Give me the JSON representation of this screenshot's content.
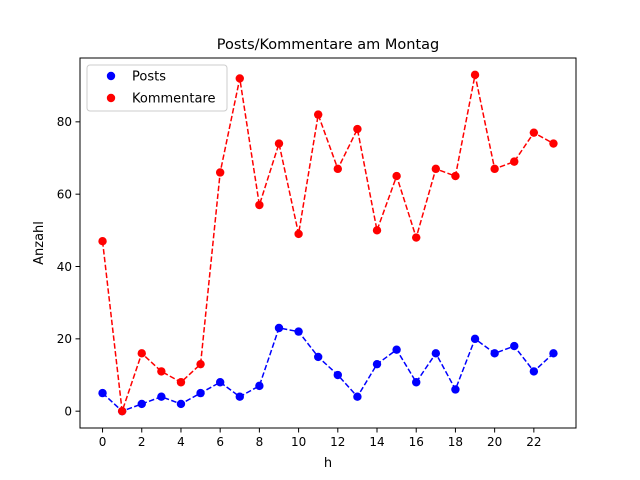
{
  "chart_data": {
    "type": "line",
    "title": "Posts/Kommentare am Montag",
    "xlabel": "h",
    "ylabel": "Anzahl",
    "x": [
      0,
      1,
      2,
      3,
      4,
      5,
      6,
      7,
      8,
      9,
      10,
      11,
      12,
      13,
      14,
      15,
      16,
      17,
      18,
      19,
      20,
      21,
      22,
      23
    ],
    "xlim": [
      -1.15,
      24.15
    ],
    "ylim": [
      -4.65,
      97.65
    ],
    "xticks": [
      0,
      2,
      4,
      6,
      8,
      10,
      12,
      14,
      16,
      18,
      20,
      22
    ],
    "yticks": [
      0,
      20,
      40,
      60,
      80
    ],
    "grid": false,
    "legend_position": "top-left",
    "series": [
      {
        "name": "Posts",
        "color": "#0000ff",
        "linestyle": "dashed",
        "marker": "circle",
        "values": [
          5,
          0,
          2,
          4,
          2,
          5,
          8,
          4,
          7,
          23,
          22,
          15,
          10,
          4,
          13,
          17,
          8,
          16,
          6,
          20,
          16,
          18,
          11,
          16
        ]
      },
      {
        "name": "Kommentare",
        "color": "#ff0000",
        "linestyle": "dashed",
        "marker": "circle",
        "values": [
          47,
          0,
          16,
          11,
          8,
          13,
          66,
          92,
          57,
          74,
          49,
          82,
          67,
          78,
          50,
          65,
          48,
          67,
          65,
          93,
          67,
          69,
          77,
          74
        ]
      }
    ]
  }
}
